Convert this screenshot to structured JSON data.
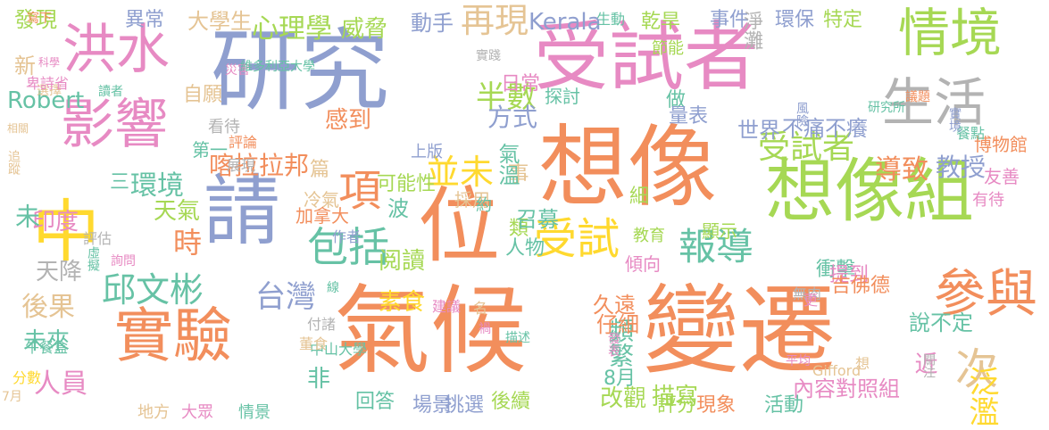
{
  "palette": {
    "background": "#ffffff",
    "salmon": "#f28e5c",
    "periwinkle": "#8f9fcf",
    "pink": "#e78ac3",
    "lime": "#a6d854",
    "yellow": "#ffd92f",
    "tan": "#e5c494",
    "gray": "#b3b3b3",
    "teal": "#66c2a5"
  },
  "words": [
    {
      "text": "氣候",
      "color": "salmon"
    },
    {
      "text": "變遷",
      "color": "salmon"
    },
    {
      "text": "研究",
      "color": "periwinkle"
    },
    {
      "text": "想像",
      "color": "salmon"
    },
    {
      "text": "受試者",
      "color": "pink"
    },
    {
      "text": "請",
      "color": "periwinkle"
    },
    {
      "text": "位",
      "color": "salmon"
    },
    {
      "text": "中",
      "color": "yellow"
    },
    {
      "text": "想像組",
      "color": "lime"
    },
    {
      "text": "實驗",
      "color": "salmon"
    },
    {
      "text": "洪水",
      "color": "pink"
    },
    {
      "text": "影響",
      "color": "pink"
    },
    {
      "text": "情境",
      "color": "lime"
    },
    {
      "text": "生活",
      "color": "gray"
    },
    {
      "text": "參與",
      "color": "salmon"
    },
    {
      "text": "受試",
      "color": "yellow"
    },
    {
      "text": "次",
      "color": "tan"
    },
    {
      "text": "項",
      "color": "salmon"
    },
    {
      "text": "邱文彬",
      "color": "teal"
    },
    {
      "text": "並未",
      "color": "yellow"
    },
    {
      "text": "再現",
      "color": "tan"
    },
    {
      "text": "半數",
      "color": "lime"
    },
    {
      "text": "心理學",
      "color": "lime"
    },
    {
      "text": "威脅",
      "color": "lime"
    },
    {
      "text": "動手",
      "color": "periwinkle"
    },
    {
      "text": "大學生",
      "color": "tan"
    },
    {
      "text": "異常",
      "color": "periwinkle"
    },
    {
      "text": "Kerala",
      "color": "periwinkle"
    },
    {
      "text": "乾旱",
      "color": "lime"
    },
    {
      "text": "事件",
      "color": "periwinkle"
    },
    {
      "text": "淨灘",
      "color": "gray"
    },
    {
      "text": "環保",
      "color": "periwinkle"
    },
    {
      "text": "特定",
      "color": "lime"
    },
    {
      "text": "受試者",
      "color": "lime"
    },
    {
      "text": "導致",
      "color": "salmon"
    },
    {
      "text": "教授",
      "color": "periwinkle"
    },
    {
      "text": "不痛不癢",
      "color": "periwinkle"
    },
    {
      "text": "世界",
      "color": "periwinkle"
    },
    {
      "text": "包括",
      "color": "teal"
    },
    {
      "text": "報導",
      "color": "teal"
    },
    {
      "text": "台灣",
      "color": "periwinkle"
    },
    {
      "text": "環境",
      "color": "teal"
    },
    {
      "text": "喀拉拉邦",
      "color": "salmon"
    },
    {
      "text": "感到",
      "color": "salmon"
    },
    {
      "text": "方式",
      "color": "periwinkle"
    },
    {
      "text": "時",
      "color": "salmon"
    },
    {
      "text": "天氣",
      "color": "lime"
    },
    {
      "text": "印度",
      "color": "pink"
    },
    {
      "text": "後果",
      "color": "tan"
    },
    {
      "text": "未來",
      "color": "teal"
    },
    {
      "text": "人員",
      "color": "pink"
    },
    {
      "text": "非",
      "color": "teal"
    },
    {
      "text": "近",
      "color": "pink"
    },
    {
      "text": "頻繁",
      "color": "teal"
    },
    {
      "text": "久遠",
      "color": "salmon"
    },
    {
      "text": "仔細",
      "color": "salmon"
    },
    {
      "text": "改觀",
      "color": "lime"
    },
    {
      "text": "描寫",
      "color": "lime"
    },
    {
      "text": "後續",
      "color": "lime"
    },
    {
      "text": "挑選",
      "color": "periwinkle"
    },
    {
      "text": "場景",
      "color": "periwinkle"
    },
    {
      "text": "回答",
      "color": "teal"
    },
    {
      "text": "泛濫",
      "color": "yellow"
    },
    {
      "text": "內容對照組",
      "color": "pink"
    },
    {
      "text": "現象",
      "color": "salmon"
    },
    {
      "text": "評分",
      "color": "lime"
    },
    {
      "text": "活動",
      "color": "teal"
    },
    {
      "text": "8月",
      "color": "teal"
    },
    {
      "text": "衝擊",
      "color": "teal"
    },
    {
      "text": "說不定",
      "color": "teal"
    },
    {
      "text": "未",
      "color": "teal"
    },
    {
      "text": "天降",
      "color": "gray"
    },
    {
      "text": "阅讀",
      "color": "lime"
    },
    {
      "text": "素食",
      "color": "yellow"
    },
    {
      "text": "人物",
      "color": "teal"
    },
    {
      "text": "類",
      "color": "lime"
    },
    {
      "text": "召募",
      "color": "teal"
    },
    {
      "text": "事",
      "color": "tan"
    },
    {
      "text": "氣溫",
      "color": "teal"
    },
    {
      "text": "波",
      "color": "teal"
    },
    {
      "text": "可能性",
      "color": "lime"
    },
    {
      "text": "篇",
      "color": "tan"
    },
    {
      "text": "發現",
      "color": "lime"
    },
    {
      "text": "新",
      "color": "tan"
    },
    {
      "text": "Robert",
      "color": "teal"
    },
    {
      "text": "寫下",
      "color": "salmon"
    },
    {
      "text": "做",
      "color": "teal"
    },
    {
      "text": "量表",
      "color": "periwinkle"
    },
    {
      "text": "節能",
      "color": "lime"
    },
    {
      "text": "日常",
      "color": "pink"
    },
    {
      "text": "探討",
      "color": "teal"
    },
    {
      "text": "自願",
      "color": "tan"
    },
    {
      "text": "看待",
      "color": "gray"
    },
    {
      "text": "第一",
      "color": "teal"
    },
    {
      "text": "三",
      "color": "teal"
    },
    {
      "text": "冷氣",
      "color": "tan"
    },
    {
      "text": "採用",
      "color": "tan"
    },
    {
      "text": "約",
      "color": "teal"
    },
    {
      "text": "加拿大",
      "color": "salmon"
    },
    {
      "text": "作者",
      "color": "periwinkle"
    },
    {
      "text": "上版",
      "color": "periwinkle"
    },
    {
      "text": "評論",
      "color": "salmon"
    },
    {
      "text": "展現",
      "color": "gray"
    },
    {
      "text": "教育",
      "color": "lime"
    },
    {
      "text": "傾向",
      "color": "pink"
    },
    {
      "text": "顯示",
      "color": "lime"
    },
    {
      "text": "細",
      "color": "lime"
    },
    {
      "text": "有待",
      "color": "pink"
    },
    {
      "text": "友善",
      "color": "pink"
    },
    {
      "text": "博物館",
      "color": "salmon"
    },
    {
      "text": "餐點",
      "color": "teal"
    },
    {
      "text": "實境",
      "color": "periwinkle"
    },
    {
      "text": "議題",
      "color": "salmon"
    },
    {
      "text": "研究所",
      "color": "teal"
    },
    {
      "text": "風險",
      "color": "periwinkle"
    },
    {
      "text": "提到",
      "color": "pink"
    },
    {
      "text": "吉佛德",
      "color": "salmon"
    },
    {
      "text": "關注",
      "color": "gray"
    },
    {
      "text": "想",
      "color": "tan"
    },
    {
      "text": "Gifford",
      "color": "tan"
    },
    {
      "text": "平均",
      "color": "pink"
    },
    {
      "text": "無肉",
      "color": "gray"
    },
    {
      "text": "更",
      "color": "pink"
    },
    {
      "text": "高",
      "color": "teal"
    },
    {
      "text": "發表",
      "color": "pink"
    },
    {
      "text": "描述",
      "color": "teal"
    },
    {
      "text": "禍",
      "color": "pink"
    },
    {
      "text": "名",
      "color": "tan"
    },
    {
      "text": "建議",
      "color": "pink"
    },
    {
      "text": "中山大學",
      "color": "teal"
    },
    {
      "text": "付諸",
      "color": "gray"
    },
    {
      "text": "董食",
      "color": "tan"
    },
    {
      "text": "線",
      "color": "teal"
    },
    {
      "text": "詢問",
      "color": "pink"
    },
    {
      "text": "虛擬",
      "color": "teal"
    },
    {
      "text": "評估",
      "color": "gray"
    },
    {
      "text": "午餐盒",
      "color": "teal"
    },
    {
      "text": "分數",
      "color": "yellow"
    },
    {
      "text": "7月",
      "color": "tan"
    },
    {
      "text": "地方",
      "color": "tan"
    },
    {
      "text": "大眾",
      "color": "pink"
    },
    {
      "text": "情景",
      "color": "teal"
    },
    {
      "text": "追蹤",
      "color": "tan"
    },
    {
      "text": "相關",
      "color": "tan"
    },
    {
      "text": "選擇",
      "color": "tan"
    },
    {
      "text": "讀者",
      "color": "teal"
    },
    {
      "text": "卑詩省",
      "color": "pink"
    },
    {
      "text": "災害",
      "color": "pink"
    },
    {
      "text": "維多利亞大學",
      "color": "teal"
    },
    {
      "text": "科學",
      "color": "pink"
    },
    {
      "text": "生動",
      "color": "teal"
    },
    {
      "text": "實踐",
      "color": "gray"
    }
  ]
}
